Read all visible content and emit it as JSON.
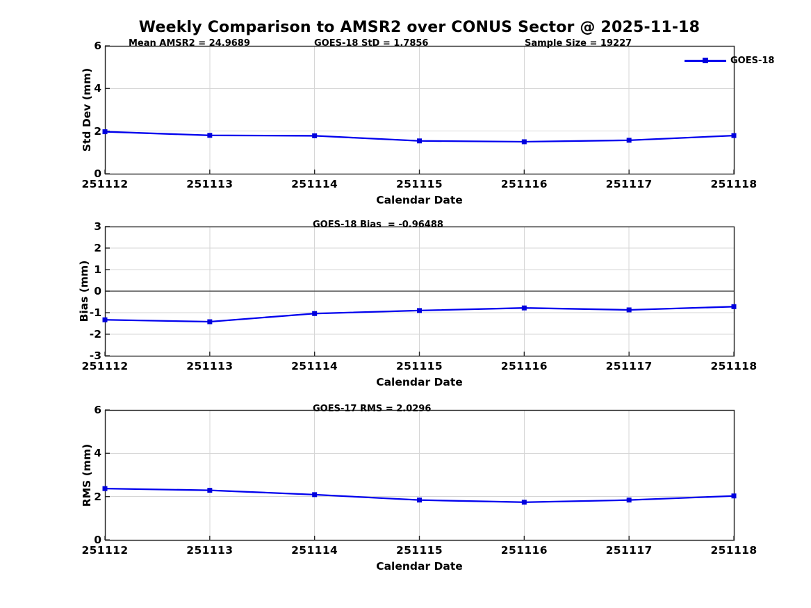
{
  "title": "Weekly Comparison to AMSR2 over CONUS Sector @ 2025-11-18",
  "legend": {
    "label": "GOES-18",
    "position": "top-right-outside",
    "boxed": false
  },
  "colors": {
    "line": "#0000EE",
    "marker": "#0000DD",
    "axis": "#262626",
    "grid": "#D6D6D6",
    "zero_line": "#4D4D4D",
    "text": "#000000",
    "background": "#FFFFFF"
  },
  "chart_data": [
    {
      "type": "line",
      "id": "std-dev",
      "annotations": [
        "Mean AMSR2 = 24.9689",
        "GOES-18 StD = 1.7856",
        "Sample Size = 19227"
      ],
      "categories": [
        "251112",
        "251113",
        "251114",
        "251115",
        "251116",
        "251117",
        "251118"
      ],
      "series": [
        {
          "name": "GOES-18",
          "values": [
            1.97,
            1.8,
            1.78,
            1.54,
            1.5,
            1.57,
            1.79
          ]
        }
      ],
      "xlabel": "Calendar Date",
      "ylabel": "Std Dev (mm)",
      "ylim": [
        0,
        6
      ],
      "yticks": [
        0,
        2,
        4,
        6
      ],
      "grid": true,
      "zero_line": false,
      "marker": "square"
    },
    {
      "type": "line",
      "id": "bias",
      "annotations": [
        "GOES-18 Bias  = -0.96488"
      ],
      "categories": [
        "251112",
        "251113",
        "251114",
        "251115",
        "251116",
        "251117",
        "251118"
      ],
      "series": [
        {
          "name": "GOES-18",
          "values": [
            -1.33,
            -1.42,
            -1.04,
            -0.9,
            -0.78,
            -0.87,
            -0.72
          ]
        }
      ],
      "xlabel": "Calendar Date",
      "ylabel": "Bias (mm)",
      "ylim": [
        -3,
        3
      ],
      "yticks": [
        -3,
        -2,
        -1,
        0,
        1,
        2,
        3
      ],
      "grid": true,
      "zero_line": true,
      "marker": "square"
    },
    {
      "type": "line",
      "id": "rms",
      "annotations": [
        "GOES-17 RMS = 2.0296"
      ],
      "categories": [
        "251112",
        "251113",
        "251114",
        "251115",
        "251116",
        "251117",
        "251118"
      ],
      "series": [
        {
          "name": "GOES-18",
          "values": [
            2.37,
            2.29,
            2.09,
            1.84,
            1.74,
            1.84,
            2.03
          ]
        }
      ],
      "xlabel": "Calendar Date",
      "ylabel": "RMS (mm)",
      "ylim": [
        0,
        6
      ],
      "yticks": [
        0,
        2,
        4,
        6
      ],
      "grid": true,
      "zero_line": false,
      "marker": "square"
    }
  ]
}
